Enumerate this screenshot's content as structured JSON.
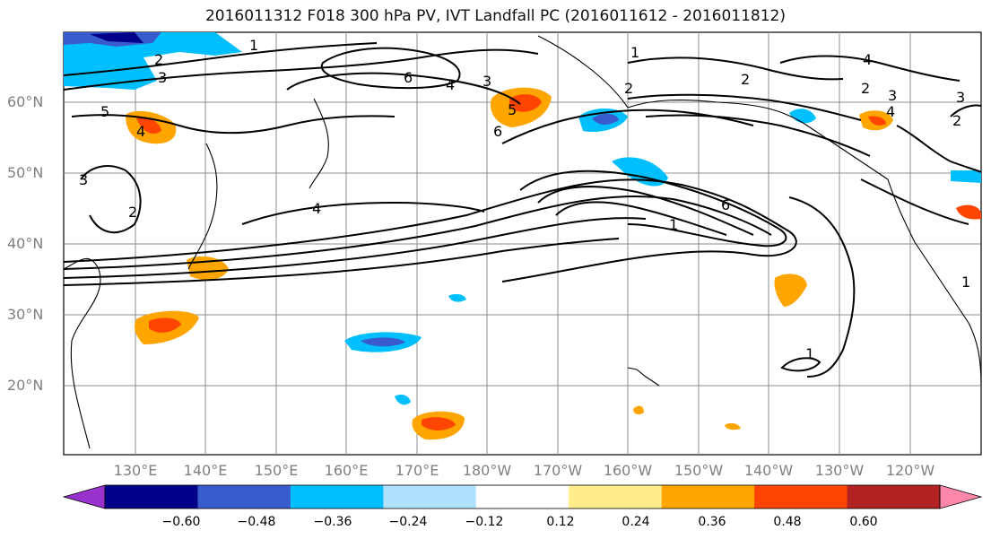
{
  "title": "2016011312 F018 300 hPa PV, IVT Landfall PC (2016011612 - 2016011812)",
  "map": {
    "lat_labels": [
      "60°N",
      "50°N",
      "40°N",
      "30°N",
      "20°N"
    ],
    "lon_labels": [
      "130°E",
      "140°E",
      "150°E",
      "160°E",
      "170°E",
      "180°W",
      "170°W",
      "160°W",
      "150°W",
      "140°W",
      "130°W",
      "120°W"
    ],
    "contour_labels": [
      "1",
      "2",
      "3",
      "4",
      "5",
      "6",
      "2",
      "3",
      "4",
      "5",
      "6",
      "4",
      "3",
      "2",
      "1",
      "2",
      "3",
      "4",
      "2",
      "3",
      "4",
      "6",
      "1",
      "1",
      "1",
      "2"
    ],
    "gridlines": true,
    "coastlines": true
  },
  "colorbar": {
    "ticks": [
      "−0.60",
      "−0.48",
      "−0.36",
      "−0.24",
      "−0.12",
      "0.12",
      "0.24",
      "0.36",
      "0.48",
      "0.60"
    ],
    "colors": [
      "#9932cc",
      "#00008b",
      "#3a5bcc",
      "#00bfff",
      "#b0e2ff",
      "#ffffff",
      "#ffec8b",
      "#ffa500",
      "#ff4500",
      "#b22222",
      "#ff88aa"
    ],
    "extend": "both"
  }
}
